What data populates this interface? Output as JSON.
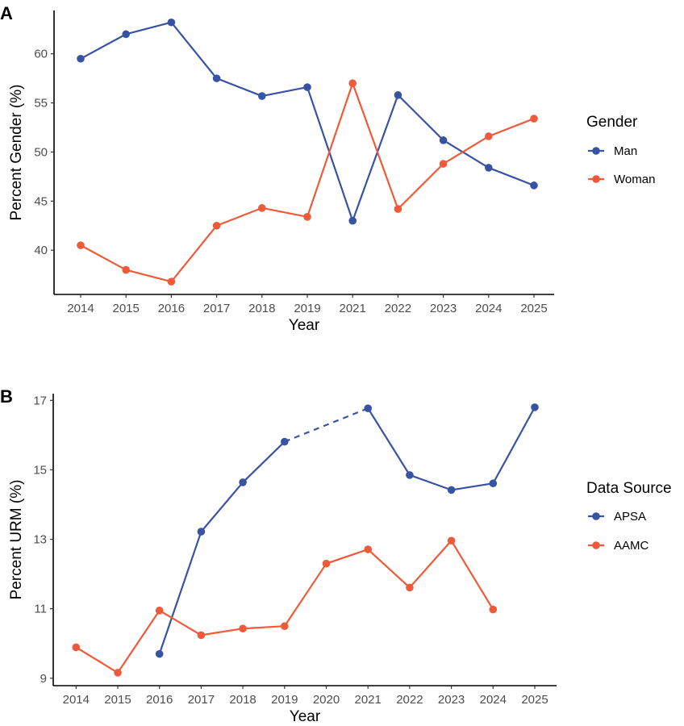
{
  "colors": {
    "blue": "#3953a4",
    "red": "#ee5a3a"
  },
  "chart_data": [
    {
      "panel_label": "A",
      "type": "line",
      "xlabel": "Year",
      "ylabel": "Percent Gender (%)",
      "categories": [
        "2014",
        "2015",
        "2016",
        "2017",
        "2018",
        "2019",
        "2021",
        "2022",
        "2023",
        "2024",
        "2025"
      ],
      "yticks": [
        40,
        45,
        50,
        55,
        60
      ],
      "ylim": [
        35.8,
        64.2
      ],
      "grid": false,
      "legend": {
        "title": "Gender",
        "placement": "right"
      },
      "series": [
        {
          "name": "Man",
          "color": "#3953a4",
          "values": [
            59.5,
            62.0,
            63.2,
            57.5,
            55.7,
            56.6,
            43.0,
            55.8,
            51.2,
            48.4,
            46.6
          ]
        },
        {
          "name": "Woman",
          "color": "#ee5a3a",
          "values": [
            40.5,
            38.0,
            36.8,
            42.5,
            44.3,
            43.4,
            57.0,
            44.2,
            48.8,
            51.6,
            53.4
          ]
        }
      ]
    },
    {
      "panel_label": "B",
      "type": "line",
      "xlabel": "Year",
      "ylabel": "Percent URM (%)",
      "categories": [
        "2014",
        "2015",
        "2016",
        "2017",
        "2018",
        "2019",
        "2020",
        "2021",
        "2022",
        "2023",
        "2024",
        "2025"
      ],
      "yticks": [
        9,
        11,
        13,
        15,
        17
      ],
      "ylim": [
        8.8,
        17.15
      ],
      "grid": false,
      "legend": {
        "title": "Data Source",
        "placement": "right"
      },
      "series": [
        {
          "name": "APSA",
          "color": "#3953a4",
          "values": [
            null,
            null,
            9.7,
            13.22,
            14.64,
            15.81,
            null,
            16.77,
            14.85,
            14.42,
            14.61,
            16.8
          ],
          "dashed_gap": [
            "2019",
            "2021"
          ]
        },
        {
          "name": "AAMC",
          "color": "#ee5a3a",
          "values": [
            9.89,
            9.16,
            10.95,
            10.24,
            10.43,
            10.5,
            12.3,
            12.71,
            11.61,
            12.96,
            10.98,
            null
          ]
        }
      ]
    }
  ]
}
